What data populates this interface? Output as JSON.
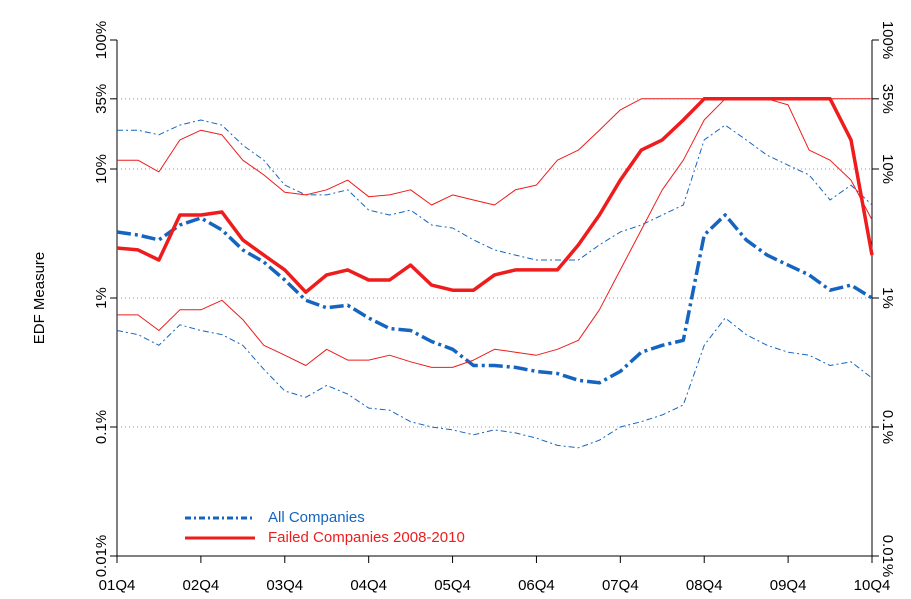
{
  "chart_data": {
    "type": "line",
    "y_label": "EDF Measure",
    "log_y": true,
    "categories": [
      "01Q4",
      null,
      null,
      null,
      "02Q4",
      null,
      null,
      null,
      "03Q4",
      null,
      null,
      null,
      "04Q4",
      null,
      null,
      null,
      "05Q4",
      null,
      null,
      null,
      "06Q4",
      null,
      null,
      null,
      "07Q4",
      null,
      null,
      null,
      "08Q4",
      null,
      null,
      null,
      "09Q4",
      null,
      null,
      null,
      "10Q4"
    ],
    "ylim": [
      0.01,
      100
    ],
    "yticks": [
      {
        "value": 0.01,
        "label": "0.01%"
      },
      {
        "value": 0.1,
        "label": "0.1%"
      },
      {
        "value": 1,
        "label": "1%"
      },
      {
        "value": 10,
        "label": "10%"
      },
      {
        "value": 35,
        "label": "35%"
      },
      {
        "value": 100,
        "label": "100%"
      }
    ],
    "y2lim": [
      0.01,
      100
    ],
    "y2ticks": [
      {
        "value": 0.01,
        "label": "0.01%"
      },
      {
        "value": 0.1,
        "label": "0.1%"
      },
      {
        "value": 1,
        "label": "1%"
      },
      {
        "value": 10,
        "label": "10%"
      },
      {
        "value": 35,
        "label": "35%"
      },
      {
        "value": 100,
        "label": "100%"
      }
    ],
    "grid": true,
    "legend": "lower-left",
    "series": [
      {
        "name": "All Companies",
        "color": "#1565c0",
        "dash": "dashdot",
        "values": [
          3.25,
          3.08,
          2.82,
          3.68,
          4.17,
          3.37,
          2.36,
          1.9,
          1.38,
          0.96,
          0.84,
          0.88,
          0.7,
          0.58,
          0.56,
          0.46,
          0.4,
          0.3,
          0.3,
          0.29,
          0.27,
          0.26,
          0.23,
          0.22,
          0.27,
          0.38,
          0.43,
          0.47,
          3.08,
          4.4,
          2.82,
          2.15,
          1.8,
          1.51,
          1.15,
          1.26,
          1.0
        ],
        "upper": [
          20,
          20,
          18.4,
          21.9,
          24,
          21.9,
          15.3,
          11.7,
          7.5,
          6.3,
          6.3,
          6.9,
          4.8,
          4.4,
          4.8,
          3.68,
          3.49,
          2.82,
          2.36,
          2.15,
          1.97,
          1.97,
          1.97,
          2.58,
          3.25,
          3.68,
          4.4,
          5.26,
          16.8,
          21.9,
          16.8,
          12.8,
          10.7,
          9.0,
          5.75,
          7.5,
          5.26
        ],
        "lower": [
          0.56,
          0.52,
          0.43,
          0.62,
          0.56,
          0.52,
          0.43,
          0.28,
          0.19,
          0.17,
          0.21,
          0.18,
          0.14,
          0.135,
          0.11,
          0.1,
          0.095,
          0.087,
          0.095,
          0.09,
          0.082,
          0.072,
          0.069,
          0.079,
          0.1,
          0.11,
          0.124,
          0.148,
          0.43,
          0.7,
          0.52,
          0.43,
          0.38,
          0.36,
          0.3,
          0.32,
          0.24
        ]
      },
      {
        "name": "Failed Companies 2008-2010",
        "color": "#ee1c1c",
        "dash": "solid",
        "values": [
          2.44,
          2.36,
          1.97,
          4.4,
          4.4,
          4.64,
          2.82,
          2.15,
          1.65,
          1.11,
          1.51,
          1.65,
          1.38,
          1.38,
          1.8,
          1.26,
          1.15,
          1.15,
          1.51,
          1.65,
          1.65,
          1.65,
          2.58,
          4.4,
          8.2,
          14.0,
          16.8,
          24.0,
          35,
          35,
          35,
          35,
          35,
          35,
          35,
          16.8,
          2.15
        ],
        "upper": [
          11.7,
          11.7,
          9.5,
          16.8,
          20,
          18.4,
          11.7,
          9.0,
          6.6,
          6.3,
          6.9,
          8.2,
          6.1,
          6.3,
          6.9,
          5.26,
          6.3,
          5.75,
          5.26,
          6.9,
          7.5,
          11.7,
          14.0,
          20,
          28.7,
          35,
          35,
          35,
          35,
          35,
          35,
          35,
          35,
          35,
          35,
          35,
          35
        ],
        "lower": [
          0.74,
          0.74,
          0.56,
          0.81,
          0.81,
          0.96,
          0.68,
          0.43,
          0.36,
          0.3,
          0.4,
          0.33,
          0.33,
          0.36,
          0.32,
          0.29,
          0.29,
          0.33,
          0.4,
          0.38,
          0.36,
          0.4,
          0.47,
          0.81,
          1.65,
          3.37,
          6.9,
          11.7,
          24,
          35,
          35,
          35,
          31.4,
          14.0,
          11.7,
          8.2,
          4.03
        ]
      }
    ]
  }
}
